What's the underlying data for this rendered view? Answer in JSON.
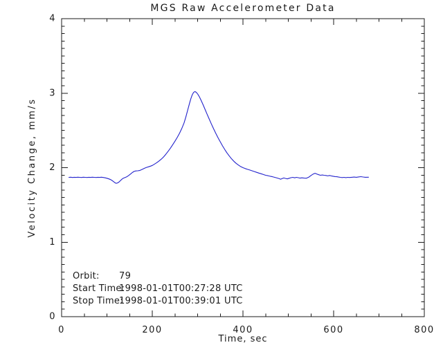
{
  "chart_data": {
    "type": "line",
    "title": "MGS Raw Accelerometer Data",
    "xlabel": "Time, sec",
    "ylabel": "Velocity Change, mm/s",
    "xlim": [
      0,
      800
    ],
    "ylim": [
      0,
      4
    ],
    "x_major_ticks": [
      0,
      200,
      400,
      600,
      800
    ],
    "x_tick_labels": [
      "0",
      "200",
      "400",
      "600",
      "800"
    ],
    "x_minor_step": 50,
    "y_major_ticks": [
      0,
      1,
      2,
      3,
      4
    ],
    "y_tick_labels": [
      "0",
      "1",
      "2",
      "3",
      "4"
    ],
    "y_minor_step": 0.1,
    "grid": false,
    "legend": "none",
    "background": "#ffffff",
    "axis_color": "#1a1a1a",
    "line_color": "#2222cc",
    "annotation": {
      "orbit_label": "Orbit:",
      "orbit_value": "79",
      "start_label": "Start Time:",
      "start_value": "1998-01-01T00:27:28 UTC",
      "stop_label": "Stop Time:",
      "stop_value": "1998-01-01T00:39:01 UTC"
    },
    "series": [
      {
        "name": "velocity-change",
        "points": [
          [
            16,
            1.87
          ],
          [
            20,
            1.872
          ],
          [
            24,
            1.868
          ],
          [
            28,
            1.871
          ],
          [
            32,
            1.869
          ],
          [
            36,
            1.872
          ],
          [
            40,
            1.87
          ],
          [
            44,
            1.868
          ],
          [
            48,
            1.872
          ],
          [
            52,
            1.87
          ],
          [
            56,
            1.868
          ],
          [
            60,
            1.871
          ],
          [
            64,
            1.869
          ],
          [
            68,
            1.872
          ],
          [
            72,
            1.87
          ],
          [
            76,
            1.868
          ],
          [
            80,
            1.871
          ],
          [
            84,
            1.869
          ],
          [
            88,
            1.872
          ],
          [
            92,
            1.868
          ],
          [
            96,
            1.864
          ],
          [
            100,
            1.858
          ],
          [
            104,
            1.85
          ],
          [
            108,
            1.84
          ],
          [
            112,
            1.825
          ],
          [
            116,
            1.806
          ],
          [
            119,
            1.793
          ],
          [
            121,
            1.79
          ],
          [
            124,
            1.797
          ],
          [
            127,
            1.81
          ],
          [
            130,
            1.828
          ],
          [
            133,
            1.845
          ],
          [
            136,
            1.858
          ],
          [
            140,
            1.868
          ],
          [
            144,
            1.878
          ],
          [
            148,
            1.895
          ],
          [
            152,
            1.915
          ],
          [
            156,
            1.935
          ],
          [
            160,
            1.95
          ],
          [
            164,
            1.956
          ],
          [
            168,
            1.958
          ],
          [
            172,
            1.962
          ],
          [
            176,
            1.972
          ],
          [
            180,
            1.983
          ],
          [
            184,
            1.995
          ],
          [
            188,
            2.005
          ],
          [
            192,
            2.012
          ],
          [
            196,
            2.02
          ],
          [
            200,
            2.03
          ],
          [
            205,
            2.048
          ],
          [
            210,
            2.068
          ],
          [
            215,
            2.09
          ],
          [
            220,
            2.115
          ],
          [
            225,
            2.145
          ],
          [
            230,
            2.18
          ],
          [
            235,
            2.22
          ],
          [
            240,
            2.262
          ],
          [
            245,
            2.308
          ],
          [
            250,
            2.355
          ],
          [
            255,
            2.405
          ],
          [
            260,
            2.46
          ],
          [
            265,
            2.525
          ],
          [
            270,
            2.6
          ],
          [
            274,
            2.68
          ],
          [
            278,
            2.77
          ],
          [
            282,
            2.86
          ],
          [
            285,
            2.925
          ],
          [
            288,
            2.975
          ],
          [
            291,
            3.01
          ],
          [
            294,
            3.022
          ],
          [
            297,
            3.012
          ],
          [
            300,
            2.99
          ],
          [
            304,
            2.95
          ],
          [
            308,
            2.9
          ],
          [
            312,
            2.845
          ],
          [
            316,
            2.788
          ],
          [
            320,
            2.73
          ],
          [
            325,
            2.66
          ],
          [
            330,
            2.592
          ],
          [
            335,
            2.525
          ],
          [
            340,
            2.462
          ],
          [
            345,
            2.402
          ],
          [
            350,
            2.345
          ],
          [
            355,
            2.292
          ],
          [
            360,
            2.242
          ],
          [
            365,
            2.196
          ],
          [
            370,
            2.155
          ],
          [
            375,
            2.118
          ],
          [
            380,
            2.085
          ],
          [
            385,
            2.058
          ],
          [
            390,
            2.035
          ],
          [
            395,
            2.015
          ],
          [
            400,
            2.0
          ],
          [
            405,
            1.988
          ],
          [
            410,
            1.978
          ],
          [
            415,
            1.968
          ],
          [
            420,
            1.958
          ],
          [
            425,
            1.948
          ],
          [
            430,
            1.938
          ],
          [
            435,
            1.928
          ],
          [
            440,
            1.918
          ],
          [
            445,
            1.908
          ],
          [
            450,
            1.898
          ],
          [
            455,
            1.892
          ],
          [
            460,
            1.885
          ],
          [
            465,
            1.878
          ],
          [
            470,
            1.87
          ],
          [
            475,
            1.862
          ],
          [
            480,
            1.852
          ],
          [
            483,
            1.845
          ],
          [
            486,
            1.852
          ],
          [
            490,
            1.862
          ],
          [
            494,
            1.855
          ],
          [
            498,
            1.85
          ],
          [
            502,
            1.858
          ],
          [
            506,
            1.865
          ],
          [
            510,
            1.87
          ],
          [
            514,
            1.864
          ],
          [
            518,
            1.87
          ],
          [
            522,
            1.865
          ],
          [
            526,
            1.86
          ],
          [
            530,
            1.864
          ],
          [
            535,
            1.86
          ],
          [
            540,
            1.858
          ],
          [
            545,
            1.872
          ],
          [
            550,
            1.895
          ],
          [
            555,
            1.915
          ],
          [
            559,
            1.925
          ],
          [
            563,
            1.915
          ],
          [
            567,
            1.905
          ],
          [
            571,
            1.898
          ],
          [
            575,
            1.902
          ],
          [
            579,
            1.898
          ],
          [
            583,
            1.895
          ],
          [
            587,
            1.89
          ],
          [
            591,
            1.895
          ],
          [
            595,
            1.89
          ],
          [
            599,
            1.885
          ],
          [
            603,
            1.88
          ],
          [
            607,
            1.878
          ],
          [
            611,
            1.874
          ],
          [
            615,
            1.87
          ],
          [
            619,
            1.867
          ],
          [
            623,
            1.87
          ],
          [
            627,
            1.866
          ],
          [
            631,
            1.87
          ],
          [
            635,
            1.868
          ],
          [
            640,
            1.871
          ],
          [
            645,
            1.874
          ],
          [
            650,
            1.871
          ],
          [
            655,
            1.876
          ],
          [
            660,
            1.879
          ],
          [
            665,
            1.875
          ],
          [
            670,
            1.871
          ],
          [
            677,
            1.872
          ]
        ]
      }
    ]
  }
}
